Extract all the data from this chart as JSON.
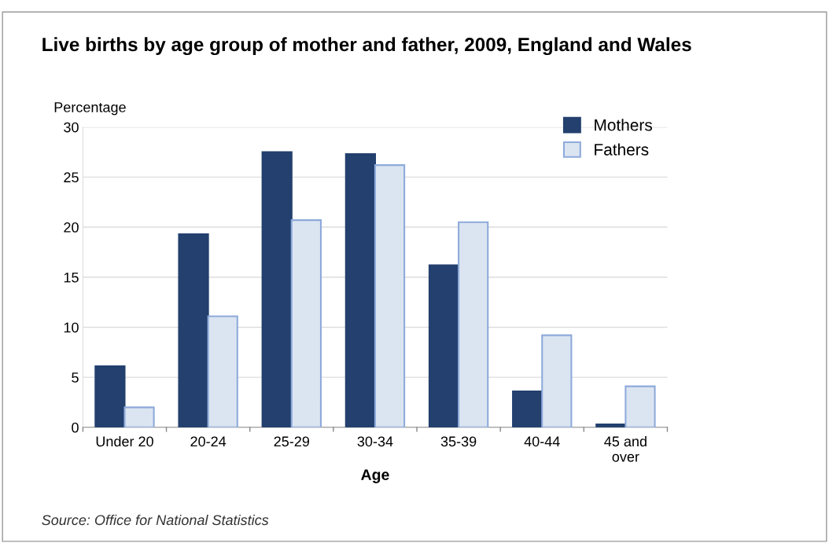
{
  "chart_data": {
    "type": "bar",
    "title": "Live births by age group of mother and father, 2009, England and Wales",
    "xlabel": "Age",
    "ylabel": "Percentage",
    "categories": [
      "Under 20",
      "20-24",
      "25-29",
      "30-34",
      "35-39",
      "40-44",
      "45 and\nover"
    ],
    "series": [
      {
        "name": "Mothers",
        "color": "#23406e",
        "values": [
          6.1,
          19.3,
          27.5,
          27.3,
          16.2,
          3.6,
          0.3
        ]
      },
      {
        "name": "Fathers",
        "color": "#dbe5f1",
        "values": [
          2.0,
          11.1,
          20.7,
          26.2,
          20.5,
          9.2,
          4.1
        ]
      }
    ],
    "ylim": [
      0,
      30
    ],
    "yticks": [
      0,
      5,
      10,
      15,
      20,
      25,
      30
    ],
    "grid": "y",
    "legend": "top right",
    "annotations": [
      "Source: Office for National Statistics"
    ]
  }
}
